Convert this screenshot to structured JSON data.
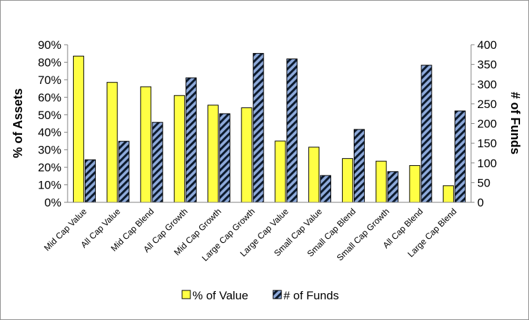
{
  "chart_data": {
    "type": "bar",
    "title": "",
    "xlabel": "",
    "ylabel": "% of Assets",
    "y2label": "# of Funds",
    "ylim": [
      0,
      90
    ],
    "y2lim": [
      0,
      400
    ],
    "yticks": [
      "0%",
      "10%",
      "20%",
      "30%",
      "40%",
      "50%",
      "60%",
      "70%",
      "80%",
      "90%"
    ],
    "y2ticks": [
      "0",
      "50",
      "100",
      "150",
      "200",
      "250",
      "300",
      "350",
      "400"
    ],
    "grid": false,
    "legend_position": "bottom",
    "categories": [
      "Mid Cap Value",
      "All Cap Value",
      "Mid Cap Blend",
      "All Cap Growth",
      "Mid Cap Growth",
      "Large Cap Growth",
      "Large Cap Value",
      "Small Cap Value",
      "Small Cap Blend",
      "Small Cap Growth",
      "All Cap Blend",
      "Large Cap Blend"
    ],
    "series": [
      {
        "name": "% of Value",
        "axis": "left",
        "color": "#ffff44",
        "values": [
          83.5,
          68.5,
          66,
          61,
          55.5,
          54,
          35,
          31.5,
          25,
          23.5,
          21,
          9.5
        ]
      },
      {
        "name": "# of Funds",
        "axis": "right",
        "color": "#8eaadb",
        "pattern": "hatched",
        "values": [
          108,
          155,
          203,
          316,
          225,
          378,
          364,
          68,
          185,
          78,
          348,
          232
        ]
      }
    ]
  }
}
